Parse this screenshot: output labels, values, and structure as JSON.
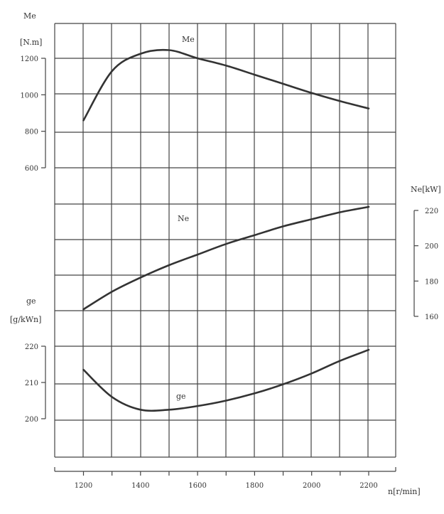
{
  "chart_data": {
    "type": "line",
    "x": [
      1200,
      1300,
      1400,
      1500,
      1600,
      1700,
      1800,
      1900,
      2000,
      2100,
      2200
    ],
    "xlabel": "n[r/min]",
    "xticks": [
      1200,
      1400,
      1600,
      1800,
      2000,
      2200
    ],
    "grid": true,
    "series": [
      {
        "name": "Me",
        "unit": "[N.m]",
        "axis_title": "Me",
        "axis_range": [
          600,
          1200
        ],
        "ticks": [
          600,
          800,
          1000,
          1200
        ],
        "values": [
          860,
          1130,
          1225,
          1245,
          1200,
          1160,
          1110,
          1060,
          1010,
          965,
          925
        ]
      },
      {
        "name": "Ne",
        "unit": "Ne[kW]",
        "axis_range": [
          160,
          220
        ],
        "ticks": [
          160,
          180,
          200,
          220
        ],
        "values": [
          164,
          174,
          182,
          189,
          195,
          201,
          206,
          211,
          215,
          219,
          222
        ]
      },
      {
        "name": "ge",
        "unit": "[g/kWn]",
        "axis_title": "ge",
        "axis_range": [
          200,
          220
        ],
        "ticks": [
          200,
          210,
          220
        ],
        "values": [
          213.5,
          206,
          202.5,
          202.5,
          203.5,
          205,
          207,
          209.5,
          212.5,
          216,
          219
        ]
      }
    ]
  }
}
